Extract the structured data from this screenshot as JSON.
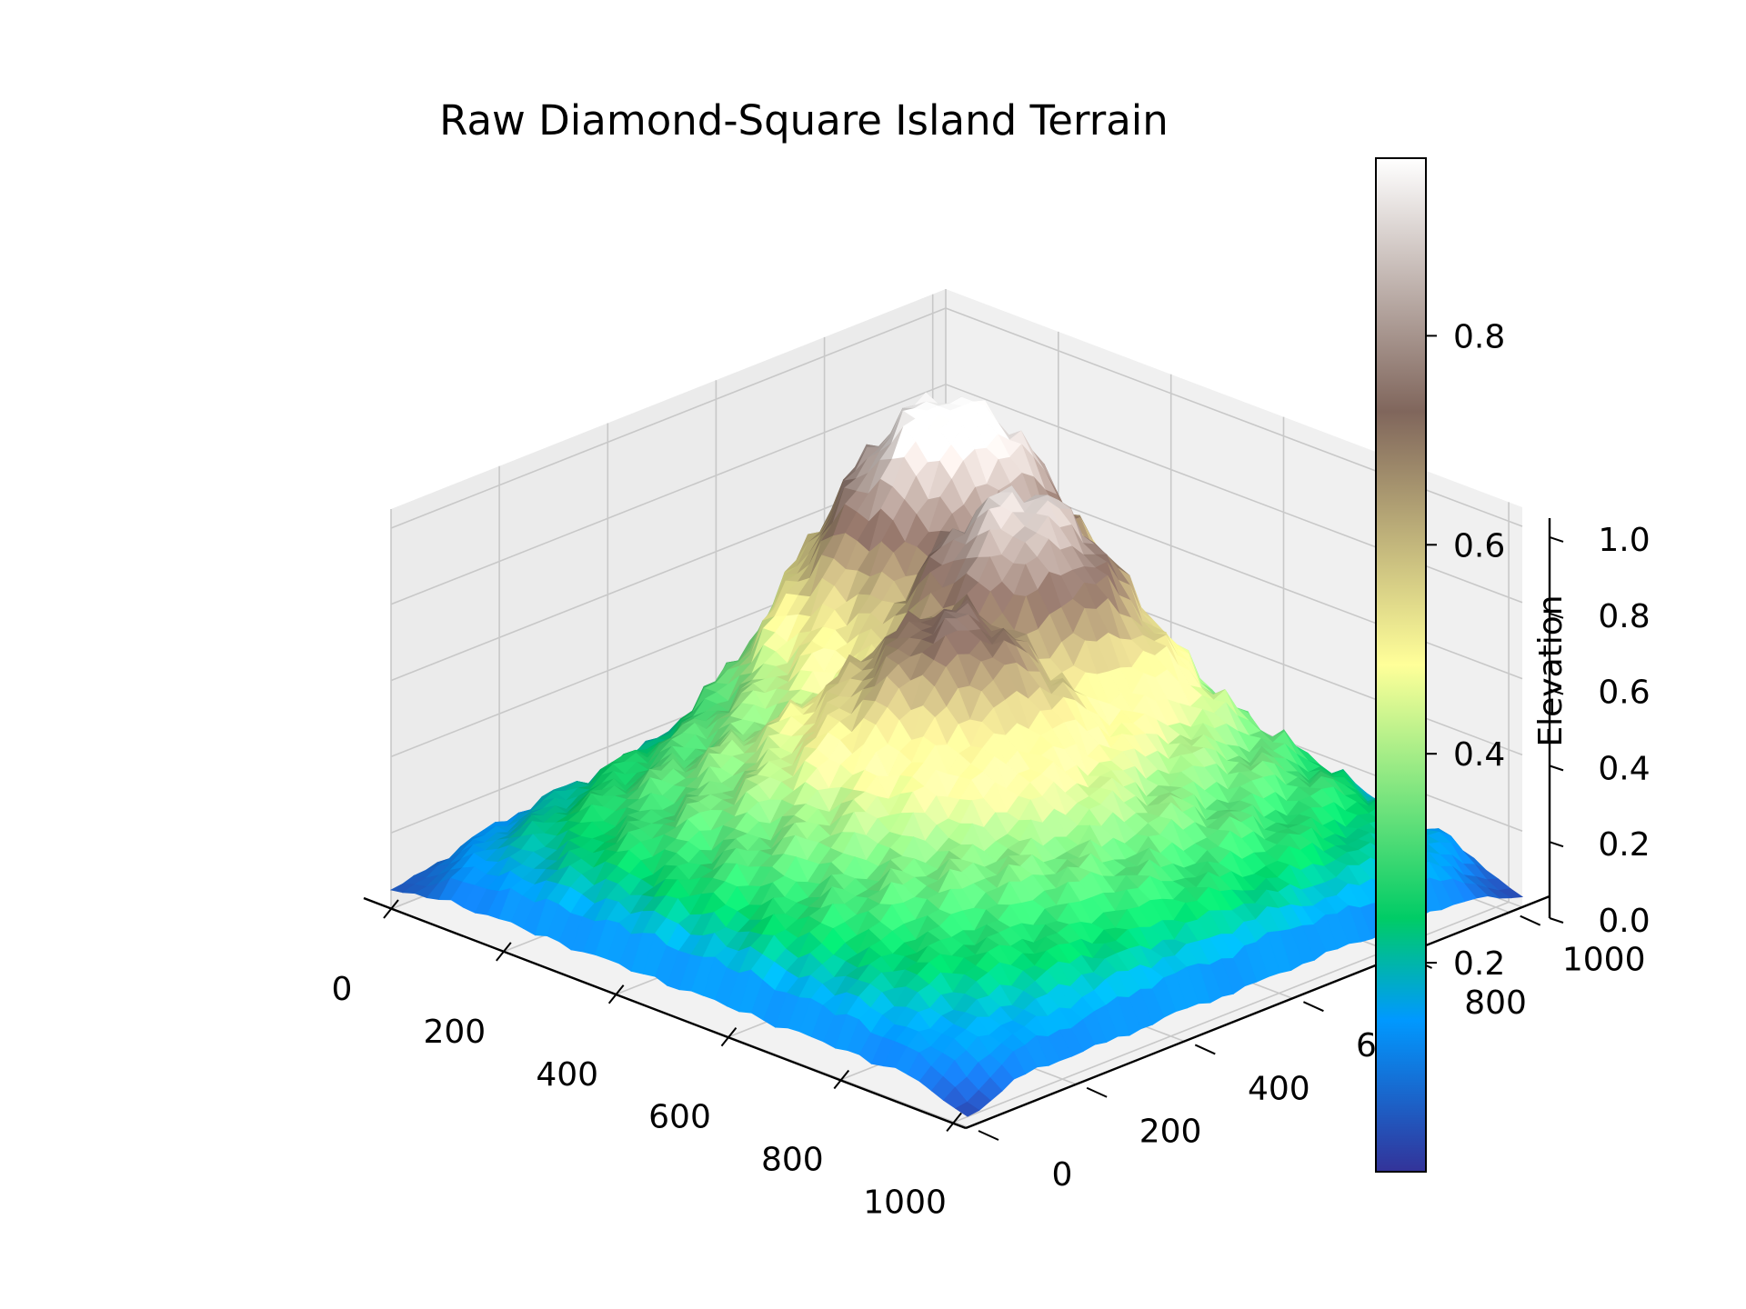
{
  "chart_data": {
    "type": "surface",
    "title": "Raw Diamond-Square Island Terrain",
    "xlabel": "",
    "ylabel": "",
    "zlabel": "",
    "x_ticks": [
      0,
      200,
      400,
      600,
      800,
      1000
    ],
    "y_ticks": [
      0,
      200,
      400,
      600,
      800,
      1000
    ],
    "z_ticks": [
      "0.0",
      "0.2",
      "0.4",
      "0.6",
      "0.8",
      "1.0"
    ],
    "xlim": [
      0,
      1024
    ],
    "ylim": [
      0,
      1024
    ],
    "zlim": [
      0,
      1.05
    ],
    "grid": true,
    "colormap": "terrain",
    "colormap_stops": [
      "#333399",
      "#0099ff",
      "#00cc66",
      "#ffff99",
      "#80665c",
      "#ffffff"
    ],
    "colorbar": {
      "label": "Elevation",
      "ticks": [
        "0.2",
        "0.4",
        "0.6",
        "0.8"
      ],
      "range": [
        0.0,
        0.97
      ]
    },
    "peaks": [
      {
        "x": 200,
        "y": 820,
        "elevation": 0.97
      },
      {
        "x": 420,
        "y": 720,
        "elevation": 0.89
      },
      {
        "x": 500,
        "y": 520,
        "elevation": 0.76
      }
    ],
    "corner_elevations": {
      "x0_y0": 0.05,
      "x1024_y0": 0.03,
      "x1024_y1024": 0.03
    }
  }
}
